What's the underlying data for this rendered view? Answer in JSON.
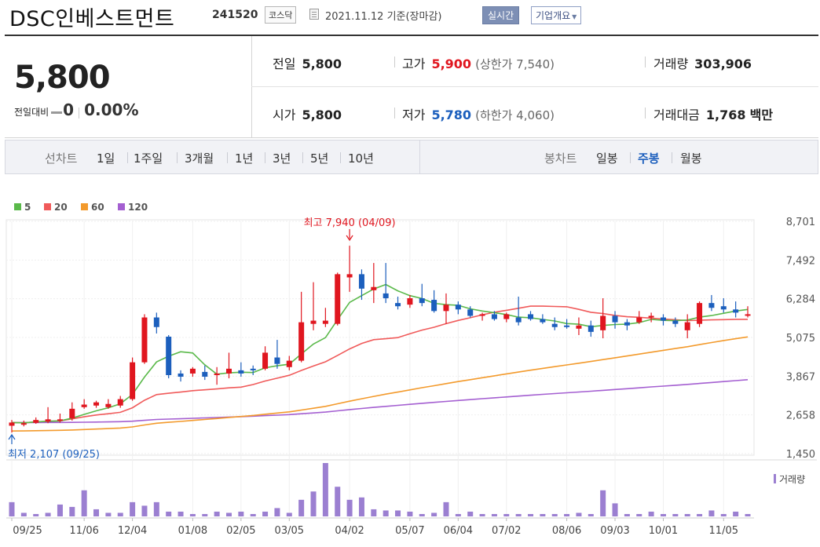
{
  "header": {
    "stock_name": "DSC인베스트먼트",
    "stock_code": "241520",
    "market": "코스닥",
    "date": "2021.11.12 기준(장마감)",
    "realtime_label": "실시간",
    "company_label": "기업개요"
  },
  "summary": {
    "price": "5,800",
    "change_label": "전일대비",
    "change_value": "0",
    "change_pct": "0.00%",
    "prev_label": "전일",
    "prev_value": "5,800",
    "open_label": "시가",
    "open_value": "5,800",
    "high_label": "고가",
    "high_value": "5,900",
    "upper_limit": "(상한가 7,540)",
    "low_label": "저가",
    "low_value": "5,780",
    "lower_limit": "(하한가 4,060)",
    "volume_label": "거래량",
    "volume_value": "303,906",
    "amount_label": "거래대금",
    "amount_value": "1,768",
    "amount_unit": "백만"
  },
  "tabs": {
    "line_chart_label": "선차트",
    "periods": [
      "1일",
      "1주일",
      "3개월",
      "1년",
      "3년",
      "5년",
      "10년"
    ],
    "candle_label": "봉차트",
    "candle_periods": [
      "일봉",
      "주봉",
      "월봉"
    ],
    "active_candle": "주봉"
  },
  "colors": {
    "up": "#e0161f",
    "down": "#1c5fbd",
    "ma5": "#5ab94a",
    "ma20": "#f05a5a",
    "ma60": "#f39a2c",
    "ma120": "#a45fd1",
    "volume": "#9b7fd1"
  },
  "chart_data": {
    "type": "candlestick",
    "legend": [
      "5",
      "20",
      "60",
      "120"
    ],
    "y_ticks": [
      "8,701",
      "7,492",
      "6,284",
      "5,075",
      "3,867",
      "2,658",
      "1,450"
    ],
    "ylim": [
      1450,
      8701
    ],
    "x_labels": [
      "09/25",
      "11/06",
      "12/04",
      "01/08",
      "02/05",
      "03/05",
      "04/02",
      "05/07",
      "06/04",
      "07/02",
      "08/06",
      "09/03",
      "10/01",
      "11/05"
    ],
    "high_annotation": "최고 7,940 (04/09)",
    "low_annotation": "최저 2,107 (09/25)",
    "volume_label": "거래량",
    "candles": [
      [
        2320,
        2500,
        2107,
        2420
      ],
      [
        2360,
        2480,
        2300,
        2400
      ],
      [
        2410,
        2580,
        2380,
        2500
      ],
      [
        2450,
        2900,
        2400,
        2520
      ],
      [
        2500,
        2700,
        2420,
        2520
      ],
      [
        2550,
        3050,
        2480,
        2850
      ],
      [
        2900,
        3150,
        2850,
        2980
      ],
      [
        2950,
        3100,
        2880,
        3050
      ],
      [
        2900,
        3150,
        2850,
        3000
      ],
      [
        2950,
        3250,
        2880,
        3150
      ],
      [
        3150,
        4450,
        3100,
        4300
      ],
      [
        4300,
        5800,
        4250,
        5700
      ],
      [
        5700,
        5850,
        5200,
        5400
      ],
      [
        5100,
        5150,
        3800,
        3900
      ],
      [
        3950,
        4050,
        3700,
        3850
      ],
      [
        3950,
        4150,
        3850,
        4100
      ],
      [
        4000,
        4200,
        3750,
        3850
      ],
      [
        3900,
        4150,
        3600,
        3950
      ],
      [
        3950,
        4600,
        3800,
        4100
      ],
      [
        4050,
        4300,
        3850,
        3950
      ],
      [
        4100,
        4200,
        3900,
        4050
      ],
      [
        4100,
        4800,
        4050,
        4600
      ],
      [
        4450,
        5000,
        4100,
        4250
      ],
      [
        4150,
        4500,
        4050,
        4350
      ],
      [
        4350,
        6500,
        4300,
        5550
      ],
      [
        5500,
        6800,
        5300,
        5600
      ],
      [
        5500,
        6000,
        5400,
        5600
      ],
      [
        5500,
        7100,
        5450,
        7050
      ],
      [
        6950,
        7940,
        6500,
        7050
      ],
      [
        7050,
        7200,
        6250,
        6600
      ],
      [
        6550,
        7400,
        6150,
        6650
      ],
      [
        6450,
        7400,
        6150,
        6300
      ],
      [
        6150,
        6350,
        5950,
        6050
      ],
      [
        6100,
        6400,
        6000,
        6300
      ],
      [
        6300,
        6750,
        6050,
        6150
      ],
      [
        6250,
        6550,
        5850,
        5900
      ],
      [
        5900,
        6450,
        5500,
        6100
      ],
      [
        6100,
        6200,
        5800,
        5950
      ],
      [
        5950,
        6050,
        5700,
        5750
      ],
      [
        5750,
        5850,
        5600,
        5800
      ],
      [
        5800,
        5900,
        5600,
        5650
      ],
      [
        5650,
        5850,
        5550,
        5800
      ],
      [
        5700,
        6350,
        5450,
        5550
      ],
      [
        5800,
        5900,
        5600,
        5650
      ],
      [
        5650,
        5800,
        5500,
        5550
      ],
      [
        5500,
        5700,
        5300,
        5400
      ],
      [
        5450,
        5650,
        5350,
        5400
      ],
      [
        5350,
        5700,
        5150,
        5450
      ],
      [
        5450,
        5600,
        5100,
        5250
      ],
      [
        5300,
        6300,
        5050,
        5750
      ],
      [
        5750,
        5900,
        5350,
        5550
      ],
      [
        5550,
        5650,
        5300,
        5450
      ],
      [
        5550,
        5900,
        5500,
        5700
      ],
      [
        5700,
        5850,
        5550,
        5750
      ],
      [
        5700,
        5800,
        5450,
        5600
      ],
      [
        5600,
        5700,
        5400,
        5500
      ],
      [
        5300,
        5800,
        5050,
        5550
      ],
      [
        5500,
        6200,
        5400,
        6150
      ],
      [
        6150,
        6400,
        5900,
        6000
      ],
      [
        6050,
        6300,
        5850,
        5950
      ],
      [
        5950,
        6200,
        5700,
        5850
      ],
      [
        5800,
        6050,
        5700,
        5800
      ]
    ],
    "volumes": [
      12,
      3,
      2,
      3,
      10,
      8,
      22,
      6,
      3,
      3,
      12,
      9,
      12,
      4,
      4,
      2,
      2,
      4,
      3,
      4,
      2,
      4,
      7,
      3,
      14,
      21,
      45,
      25,
      14,
      16,
      6,
      5,
      5,
      4,
      2,
      3,
      12,
      2,
      4,
      2,
      2,
      2,
      2,
      2,
      2,
      2,
      2,
      3,
      2,
      22,
      11,
      2,
      2,
      4,
      2,
      2,
      2,
      2,
      5,
      2,
      4,
      2
    ]
  }
}
